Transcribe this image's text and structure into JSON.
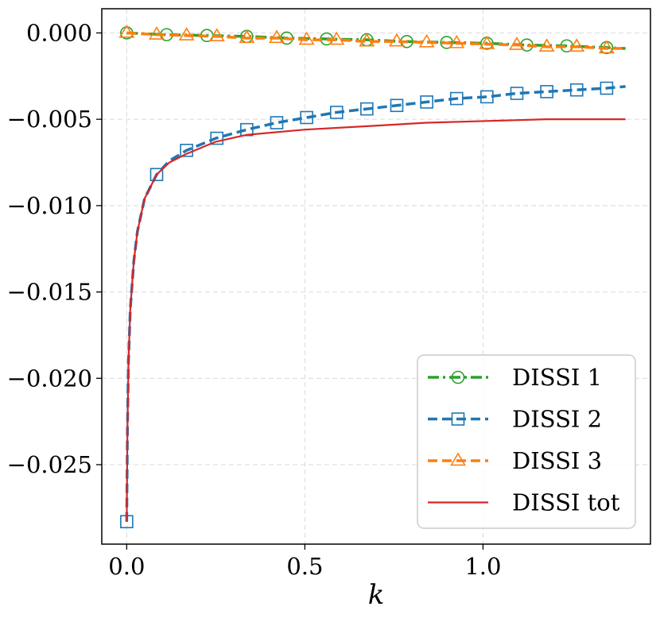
{
  "chart_data": {
    "type": "line",
    "title": "",
    "xlabel": "k",
    "ylabel": "",
    "xlim": [
      -0.07,
      1.47
    ],
    "ylim": [
      -0.0296,
      0.0014
    ],
    "grid": true,
    "legend_position": "lower-right",
    "x_ticks": [
      0.0,
      0.5,
      1.0
    ],
    "x_tick_labels": [
      "0.0",
      "0.5",
      "1.0"
    ],
    "y_ticks": [
      0.0,
      -0.005,
      -0.01,
      -0.015,
      -0.02,
      -0.025
    ],
    "y_tick_labels": [
      "0.000",
      "−0.005",
      "−0.010",
      "−0.015",
      "−0.020",
      "−0.025"
    ],
    "series": [
      {
        "name": "DISSI 1",
        "color": "#2ca02c",
        "line": "dashdot",
        "marker": "circle",
        "x": [
          0.0,
          0.112,
          0.225,
          0.337,
          0.449,
          0.561,
          0.674,
          0.786,
          0.898,
          1.011,
          1.123,
          1.235,
          1.347,
          1.4
        ],
        "y": [
          0.0,
          -0.0001,
          -0.00015,
          -0.0002,
          -0.0003,
          -0.00035,
          -0.0004,
          -0.0005,
          -0.00055,
          -0.0006,
          -0.0007,
          -0.00075,
          -0.00085,
          -0.0009
        ],
        "markers_x": [
          0.0,
          0.112,
          0.225,
          0.337,
          0.449,
          0.561,
          0.674,
          0.786,
          0.898,
          1.011,
          1.123,
          1.235,
          1.347
        ],
        "markers_y": [
          0.0,
          -0.0001,
          -0.00015,
          -0.0002,
          -0.0003,
          -0.00035,
          -0.0004,
          -0.0005,
          -0.00055,
          -0.0006,
          -0.0007,
          -0.00075,
          -0.00085
        ]
      },
      {
        "name": "DISSI 2",
        "color": "#1f77b4",
        "line": "dashed",
        "marker": "square",
        "x": [
          0.0,
          0.002,
          0.005,
          0.01,
          0.02,
          0.03,
          0.05,
          0.084,
          0.12,
          0.168,
          0.25,
          0.337,
          0.421,
          0.505,
          0.589,
          0.674,
          0.758,
          0.842,
          0.926,
          1.011,
          1.095,
          1.179,
          1.263,
          1.347,
          1.4
        ],
        "y": [
          -0.0283,
          -0.023,
          -0.019,
          -0.016,
          -0.0132,
          -0.0115,
          -0.0096,
          -0.0082,
          -0.0074,
          -0.0068,
          -0.0061,
          -0.0056,
          -0.0052,
          -0.0049,
          -0.0046,
          -0.0044,
          -0.0042,
          -0.004,
          -0.0038,
          -0.0037,
          -0.0035,
          -0.0034,
          -0.0033,
          -0.0032,
          -0.0031
        ],
        "markers_x": [
          0.0,
          0.084,
          0.168,
          0.253,
          0.337,
          0.421,
          0.505,
          0.589,
          0.674,
          0.758,
          0.842,
          0.926,
          1.011,
          1.095,
          1.179,
          1.263,
          1.347
        ],
        "markers_y": [
          -0.0283,
          -0.0082,
          -0.0068,
          -0.0061,
          -0.0056,
          -0.0052,
          -0.0049,
          -0.0046,
          -0.0044,
          -0.0042,
          -0.004,
          -0.0038,
          -0.0037,
          -0.0035,
          -0.0034,
          -0.0033,
          -0.0032
        ]
      },
      {
        "name": "DISSI 3",
        "color": "#ff7f0e",
        "line": "dashed",
        "marker": "triangle",
        "x": [
          0.0,
          0.084,
          0.168,
          0.253,
          0.337,
          0.421,
          0.505,
          0.589,
          0.674,
          0.758,
          0.842,
          0.926,
          1.011,
          1.095,
          1.179,
          1.263,
          1.347,
          1.4
        ],
        "y": [
          0.0,
          -0.0001,
          -0.00015,
          -0.0002,
          -0.0003,
          -0.0003,
          -0.0004,
          -0.0004,
          -0.0005,
          -0.0005,
          -0.00055,
          -0.0006,
          -0.00065,
          -0.0007,
          -0.0008,
          -0.0008,
          -0.0009,
          -0.0009
        ],
        "markers_x": [
          0.0,
          0.084,
          0.168,
          0.253,
          0.337,
          0.421,
          0.505,
          0.589,
          0.674,
          0.758,
          0.842,
          0.926,
          1.011,
          1.095,
          1.179,
          1.263,
          1.347
        ],
        "markers_y": [
          0.0,
          -0.0001,
          -0.00015,
          -0.0002,
          -0.0003,
          -0.0003,
          -0.0004,
          -0.0004,
          -0.0005,
          -0.0005,
          -0.00055,
          -0.0006,
          -0.00065,
          -0.0007,
          -0.0008,
          -0.0008,
          -0.0009
        ]
      },
      {
        "name": "DISSI tot",
        "color": "#d62728",
        "line": "solid",
        "marker": "none",
        "x": [
          0.0,
          0.002,
          0.005,
          0.01,
          0.02,
          0.03,
          0.05,
          0.084,
          0.12,
          0.168,
          0.25,
          0.337,
          0.5,
          0.674,
          0.842,
          1.011,
          1.179,
          1.263,
          1.347,
          1.4
        ],
        "y": [
          -0.0283,
          -0.023,
          -0.019,
          -0.016,
          -0.0132,
          -0.0115,
          -0.0096,
          -0.0082,
          -0.0075,
          -0.007,
          -0.0063,
          -0.0059,
          -0.0056,
          -0.0054,
          -0.0052,
          -0.0051,
          -0.005,
          -0.005,
          -0.005,
          -0.005
        ]
      }
    ]
  }
}
